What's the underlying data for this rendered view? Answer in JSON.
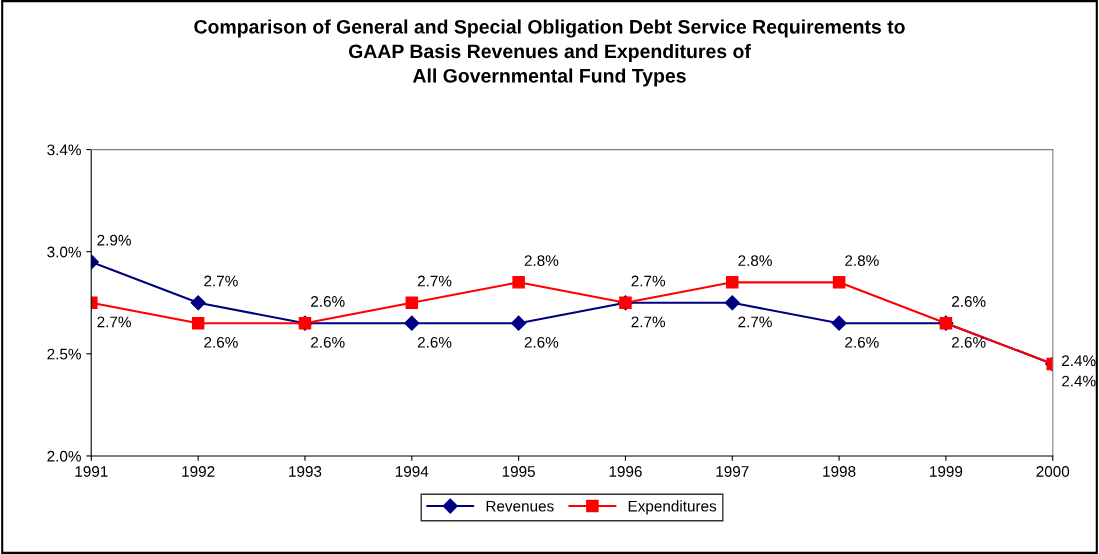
{
  "chart_data": {
    "type": "line",
    "title": "Comparison of General and Special Obligation Debt Service Requirements to\nGAAP Basis Revenues and Expenditures of\nAll Governmental Fund Types",
    "categories": [
      "1991",
      "1992",
      "1993",
      "1994",
      "1995",
      "1996",
      "1997",
      "1998",
      "1999",
      "2000"
    ],
    "series": [
      {
        "name": "Revenues",
        "color": "#000080",
        "marker": "diamond",
        "values": [
          2.9,
          2.7,
          2.6,
          2.6,
          2.6,
          2.7,
          2.7,
          2.6,
          2.6,
          2.4
        ],
        "value_labels": [
          "2.9%",
          "2.7%",
          "2.6%",
          "2.6%",
          "2.6%",
          "2.7%",
          "2.7%",
          "2.6%",
          "2.6%",
          "2.4%"
        ]
      },
      {
        "name": "Expenditures",
        "color": "#ff0000",
        "marker": "square",
        "values": [
          2.7,
          2.6,
          2.6,
          2.7,
          2.8,
          2.7,
          2.8,
          2.8,
          2.6,
          2.4
        ],
        "value_labels": [
          "2.7%",
          "2.6%",
          "2.6%",
          "2.7%",
          "2.8%",
          "2.7%",
          "2.8%",
          "2.8%",
          "2.6%",
          "2.4%"
        ]
      }
    ],
    "ylim": [
      1.95,
      3.45
    ],
    "yticks": [
      {
        "value": 1.95,
        "label": "2.0%"
      },
      {
        "value": 2.45,
        "label": "2.5%"
      },
      {
        "value": 2.95,
        "label": "3.0%"
      },
      {
        "value": 3.45,
        "label": "3.4%"
      }
    ],
    "grid": false,
    "legend": "bottom",
    "line_style": "solid"
  }
}
